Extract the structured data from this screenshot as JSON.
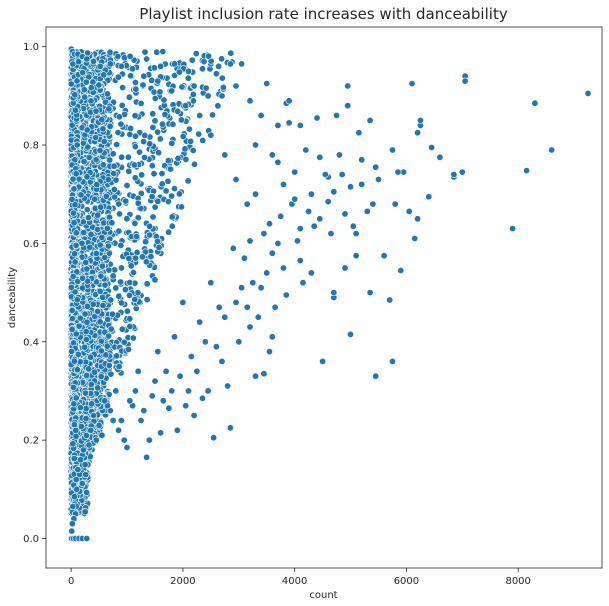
{
  "chart_data": {
    "type": "scatter",
    "title": "Playlist inclusion rate increases with danceability",
    "xlabel": "count",
    "ylabel": "danceability",
    "xlim": [
      -450,
      9500
    ],
    "ylim": [
      -0.06,
      1.04
    ],
    "x_ticks": [
      0,
      2000,
      4000,
      6000,
      8000
    ],
    "y_ticks": [
      0.0,
      0.2,
      0.4,
      0.6,
      0.8,
      1.0
    ],
    "grid": false,
    "legend": "none",
    "colors": {
      "point_fill": "#1f77b4",
      "point_edge": "#ffffff",
      "axis": "#262626"
    },
    "points": [
      [
        9250,
        0.905
      ],
      [
        8600,
        0.79
      ],
      [
        8300,
        0.885
      ],
      [
        8150,
        0.748
      ],
      [
        7900,
        0.63
      ],
      [
        7050,
        0.94
      ],
      [
        7050,
        0.93
      ],
      [
        7000,
        0.745
      ],
      [
        6850,
        0.735
      ],
      [
        6850,
        0.74
      ],
      [
        6600,
        0.775
      ],
      [
        6450,
        0.795
      ],
      [
        6400,
        0.695
      ],
      [
        6250,
        0.84
      ],
      [
        6250,
        0.85
      ],
      [
        6200,
        0.825
      ],
      [
        6200,
        0.65
      ],
      [
        6150,
        0.61
      ],
      [
        6100,
        0.925
      ],
      [
        6050,
        0.665
      ],
      [
        5950,
        0.745
      ],
      [
        5900,
        0.545
      ],
      [
        5850,
        0.745
      ],
      [
        5800,
        0.68
      ],
      [
        5750,
        0.79
      ],
      [
        5750,
        0.36
      ],
      [
        5700,
        0.485
      ],
      [
        5600,
        0.575
      ],
      [
        5500,
        0.73
      ],
      [
        5450,
        0.755
      ],
      [
        5450,
        0.33
      ],
      [
        5400,
        0.68
      ],
      [
        5350,
        0.5
      ],
      [
        5350,
        0.85
      ],
      [
        5300,
        0.665
      ],
      [
        5200,
        0.77
      ],
      [
        5200,
        0.72
      ],
      [
        5150,
        0.825
      ],
      [
        5100,
        0.62
      ],
      [
        5100,
        0.575
      ],
      [
        5050,
        0.635
      ],
      [
        5000,
        0.415
      ],
      [
        5000,
        0.715
      ],
      [
        4950,
        0.92
      ],
      [
        4950,
        0.88
      ],
      [
        4900,
        0.66
      ],
      [
        4900,
        0.55
      ],
      [
        4850,
        0.74
      ],
      [
        4800,
        0.78
      ],
      [
        4750,
        0.86
      ],
      [
        4700,
        0.705
      ],
      [
        4700,
        0.49
      ],
      [
        4700,
        0.5
      ],
      [
        4650,
        0.62
      ],
      [
        4600,
        0.685
      ],
      [
        4600,
        0.735
      ],
      [
        4550,
        0.74
      ],
      [
        4500,
        0.36
      ],
      [
        4450,
        0.65
      ],
      [
        4450,
        0.775
      ],
      [
        4400,
        0.855
      ],
      [
        4350,
        0.635
      ],
      [
        4300,
        0.7
      ],
      [
        4300,
        0.54
      ],
      [
        4250,
        0.665
      ],
      [
        4200,
        0.79
      ],
      [
        4150,
        0.52
      ],
      [
        4100,
        0.565
      ],
      [
        4100,
        0.63
      ],
      [
        4050,
        0.605
      ],
      [
        4000,
        0.745
      ],
      [
        3950,
        0.68
      ],
      [
        3900,
        0.845
      ],
      [
        3850,
        0.495
      ],
      [
        3850,
        0.885
      ],
      [
        3800,
        0.55
      ],
      [
        3750,
        0.655
      ],
      [
        3700,
        0.765
      ],
      [
        3700,
        0.6
      ],
      [
        3650,
        0.47
      ],
      [
        3600,
        0.41
      ],
      [
        3600,
        0.58
      ],
      [
        3550,
        0.64
      ],
      [
        3550,
        0.38
      ],
      [
        3500,
        0.54
      ],
      [
        3500,
        0.925
      ],
      [
        3450,
        0.335
      ],
      [
        3400,
        0.51
      ],
      [
        3350,
        0.45
      ],
      [
        3300,
        0.7
      ],
      [
        3300,
        0.33
      ],
      [
        3250,
        0.52
      ],
      [
        3200,
        0.605
      ],
      [
        3200,
        0.43
      ],
      [
        3150,
        0.47
      ],
      [
        3100,
        0.57
      ],
      [
        3050,
        0.965
      ],
      [
        3050,
        0.51
      ],
      [
        3000,
        0.4
      ],
      [
        2950,
        0.48
      ],
      [
        2900,
        0.59
      ],
      [
        2850,
        0.965
      ],
      [
        2850,
        0.225
      ],
      [
        2800,
        0.31
      ],
      [
        2750,
        0.45
      ],
      [
        2700,
        0.36
      ],
      [
        2650,
        0.47
      ],
      [
        2600,
        0.39
      ],
      [
        2550,
        0.205
      ],
      [
        2500,
        0.52
      ],
      [
        2450,
        0.3
      ],
      [
        2400,
        0.4
      ],
      [
        2350,
        0.285
      ],
      [
        2300,
        0.44
      ],
      [
        2250,
        0.34
      ],
      [
        2200,
        0.25
      ],
      [
        2150,
        0.37
      ],
      [
        2100,
        0.3
      ],
      [
        2050,
        0.27
      ],
      [
        2000,
        0.48
      ],
      [
        1950,
        0.33
      ],
      [
        1900,
        0.22
      ],
      [
        1850,
        0.41
      ],
      [
        1800,
        0.3
      ],
      [
        1750,
        0.265
      ],
      [
        1700,
        0.34
      ],
      [
        1650,
        0.28
      ],
      [
        1600,
        0.215
      ],
      [
        1550,
        0.38
      ],
      [
        1500,
        0.32
      ],
      [
        1450,
        0.29
      ],
      [
        1400,
        0.2
      ],
      [
        1350,
        0.165
      ],
      [
        1300,
        0.26
      ],
      [
        1250,
        0.24
      ],
      [
        1200,
        0.34
      ],
      [
        1150,
        0.3
      ],
      [
        1100,
        0.27
      ],
      [
        1050,
        0.28
      ],
      [
        1000,
        0.185
      ],
      [
        950,
        0.2
      ],
      [
        900,
        0.24
      ],
      [
        850,
        0.22
      ],
      [
        800,
        0.3
      ],
      [
        750,
        0.24
      ],
      [
        700,
        0.26
      ],
      [
        650,
        0.27
      ],
      [
        600,
        0.28
      ],
      [
        550,
        0.21
      ],
      [
        500,
        0.23
      ],
      [
        450,
        0.2
      ],
      [
        400,
        0.25
      ],
      [
        350,
        0.22
      ],
      [
        300,
        0.15
      ],
      [
        250,
        0.15
      ],
      [
        200,
        0.17
      ],
      [
        150,
        0.13
      ],
      [
        100,
        0.1
      ],
      [
        80,
        0.05
      ],
      [
        50,
        0.04
      ],
      [
        20,
        0.03
      ],
      [
        10,
        0.015
      ],
      [
        10,
        0.0
      ],
      [
        40,
        0.0
      ],
      [
        80,
        0.0
      ],
      [
        140,
        0.0
      ],
      [
        200,
        0.0
      ],
      [
        280,
        0.0
      ],
      [
        30,
        0.065
      ],
      [
        60,
        0.085
      ],
      [
        90,
        0.12
      ],
      [
        120,
        0.14
      ],
      [
        170,
        0.16
      ],
      [
        220,
        0.18
      ],
      [
        260,
        0.13
      ],
      [
        320,
        0.19
      ],
      [
        5,
        0.995
      ],
      [
        25,
        0.99
      ],
      [
        60,
        0.985
      ],
      [
        120,
        0.985
      ],
      [
        200,
        0.98
      ],
      [
        280,
        0.975
      ],
      [
        400,
        0.97
      ],
      [
        520,
        0.96
      ],
      [
        700,
        0.965
      ],
      [
        900,
        0.96
      ],
      [
        1100,
        0.955
      ],
      [
        1350,
        0.975
      ],
      [
        1600,
        0.96
      ],
      [
        1850,
        0.965
      ],
      [
        2100,
        0.95
      ],
      [
        2350,
        0.955
      ],
      [
        2600,
        0.945
      ],
      [
        2200,
        0.92
      ],
      [
        2450,
        0.9
      ],
      [
        2700,
        0.9
      ],
      [
        2950,
        0.92
      ],
      [
        3200,
        0.89
      ],
      [
        3400,
        0.86
      ],
      [
        3700,
        0.84
      ],
      [
        3900,
        0.89
      ],
      [
        4100,
        0.84
      ],
      [
        3300,
        0.8
      ],
      [
        3600,
        0.78
      ],
      [
        3800,
        0.72
      ],
      [
        4000,
        0.69
      ],
      [
        3450,
        0.62
      ],
      [
        3150,
        0.68
      ],
      [
        2950,
        0.73
      ],
      [
        2750,
        0.78
      ],
      [
        2500,
        0.82
      ],
      [
        2300,
        0.86
      ],
      [
        2050,
        0.88
      ],
      [
        1800,
        0.91
      ],
      [
        1550,
        0.93
      ],
      [
        1300,
        0.94
      ]
    ]
  }
}
